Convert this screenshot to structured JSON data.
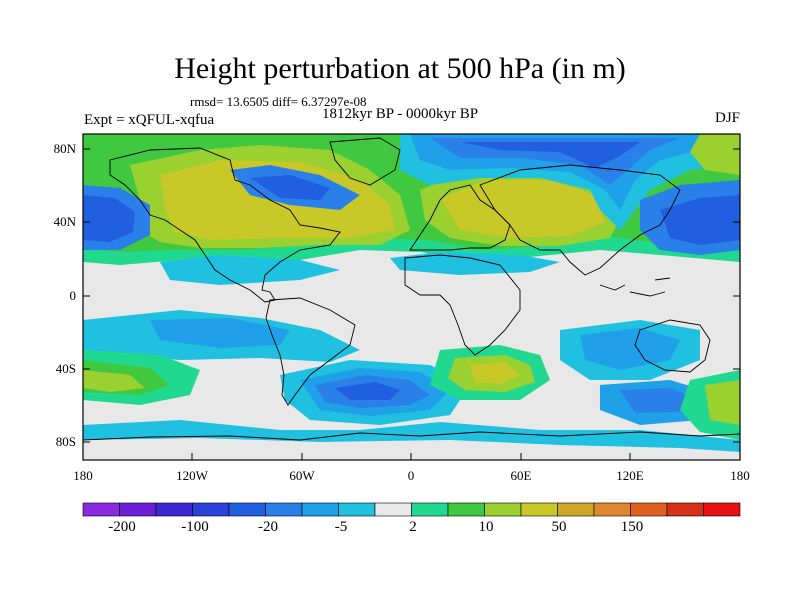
{
  "title": "Height perturbation at 500 hPa (in m)",
  "stats": "rmsd= 13.6505 diff= 6.37297e-08",
  "period": "1812kyr BP - 0000kyr BP",
  "experiment": "Expt = xQFUL-xqfua",
  "season": "DJF",
  "axes": {
    "y_ticks": [
      "80N",
      "40N",
      "0",
      "40S",
      "80S"
    ],
    "x_ticks": [
      "180",
      "120W",
      "60W",
      "0",
      "60E",
      "120E",
      "180"
    ]
  },
  "colorbar": {
    "colors": [
      "#8a2be2",
      "#6a1fd6",
      "#3c28d0",
      "#2a40d8",
      "#1f5fe0",
      "#2a80e8",
      "#1fa0e8",
      "#20c0e0",
      "#e8e8e8",
      "#20d890",
      "#40c840",
      "#9ad030",
      "#c8c828",
      "#d0a828",
      "#e08830",
      "#e06020",
      "#d83018",
      "#e81010"
    ],
    "labels": [
      "-200",
      "-100",
      "-20",
      "-5",
      "2",
      "10",
      "50",
      "150"
    ]
  },
  "legend_colors": {
    "strong_negative": "#2a40d8",
    "negative": "#1f5fe0",
    "weak_negative": "#2a80e8",
    "slight_negative": "#20c0e0",
    "neutral": "#e8e8e8",
    "slight_positive": "#20d890",
    "positive": "#9ad030",
    "strong_positive": "#c8c828"
  }
}
